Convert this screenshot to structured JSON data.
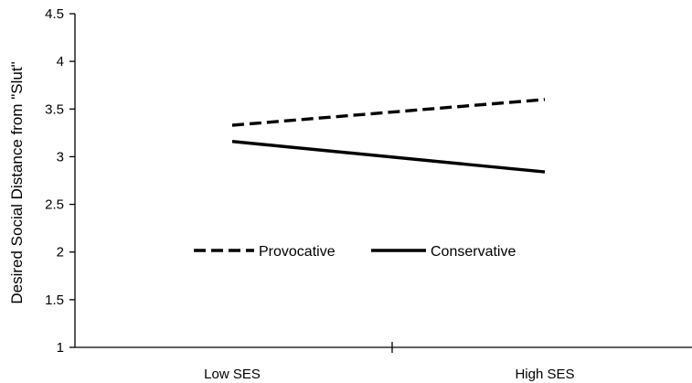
{
  "chart_data": {
    "type": "line",
    "title": "",
    "xlabel": "",
    "ylabel": "Desired Social Distance from \"Slut\"",
    "categories": [
      "Low SES",
      "High SES"
    ],
    "ylim": [
      1,
      4.5
    ],
    "yticks": [
      "1",
      "1.5",
      "2",
      "2.5",
      "3",
      "3.5",
      "4",
      "4.5"
    ],
    "grid": false,
    "legend_position": "center-left, inside plot",
    "series": [
      {
        "name": "Provocative",
        "values": [
          3.33,
          3.6
        ],
        "style": "dashed",
        "color": "#000000"
      },
      {
        "name": "Conservative",
        "values": [
          3.16,
          2.84
        ],
        "style": "solid",
        "color": "#000000"
      }
    ]
  }
}
